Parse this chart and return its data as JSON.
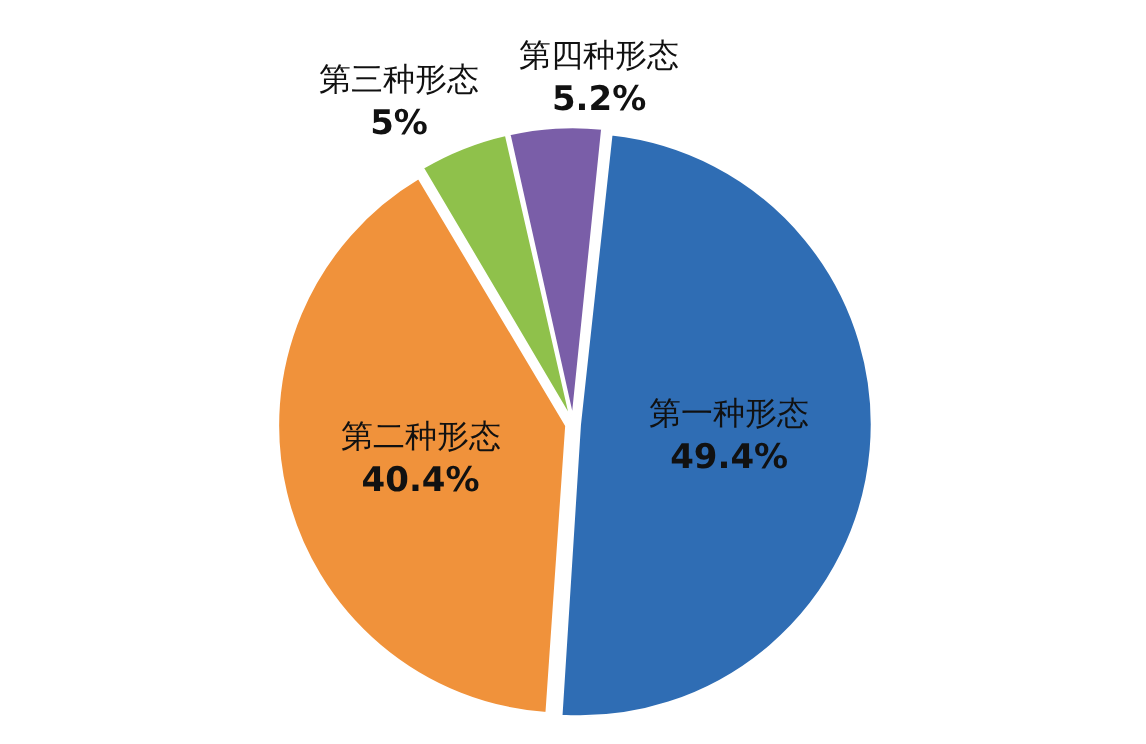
{
  "chart_data": {
    "type": "pie",
    "categories": [
      "第一种形态",
      "第二种形态",
      "第三种形态",
      "第四种形态"
    ],
    "values": [
      49.4,
      40.4,
      5,
      5.2
    ],
    "value_labels": [
      "49.4%",
      "40.4%",
      "5%",
      "5.2%"
    ],
    "colors": [
      "#2f6db4",
      "#f0923b",
      "#8fc14b",
      "#7a5ea8"
    ],
    "legend": false
  }
}
